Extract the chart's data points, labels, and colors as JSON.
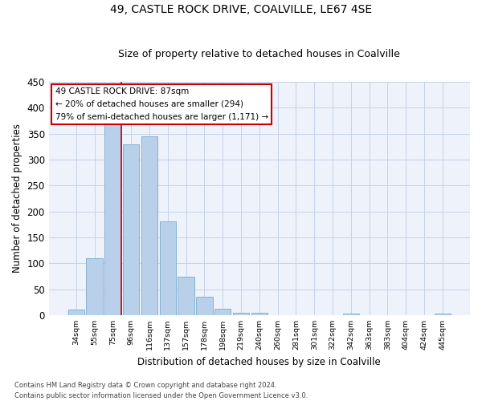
{
  "title": "49, CASTLE ROCK DRIVE, COALVILLE, LE67 4SE",
  "subtitle": "Size of property relative to detached houses in Coalville",
  "xlabel": "Distribution of detached houses by size in Coalville",
  "ylabel": "Number of detached properties",
  "bar_labels": [
    "34sqm",
    "55sqm",
    "75sqm",
    "96sqm",
    "116sqm",
    "137sqm",
    "157sqm",
    "178sqm",
    "198sqm",
    "219sqm",
    "240sqm",
    "260sqm",
    "281sqm",
    "301sqm",
    "322sqm",
    "342sqm",
    "363sqm",
    "383sqm",
    "404sqm",
    "424sqm",
    "445sqm"
  ],
  "bar_heights": [
    10,
    110,
    375,
    330,
    345,
    181,
    74,
    36,
    12,
    5,
    4,
    0,
    0,
    0,
    0,
    3,
    0,
    0,
    0,
    0,
    3
  ],
  "bar_color": "#b8d0ea",
  "bar_edge_color": "#7aaace",
  "vline_color": "#cc0000",
  "annotation_title": "49 CASTLE ROCK DRIVE: 87sqm",
  "annotation_line1": "← 20% of detached houses are smaller (294)",
  "annotation_line2": "79% of semi-detached houses are larger (1,171) →",
  "annotation_box_color": "#cc0000",
  "ylim": [
    0,
    450
  ],
  "yticks": [
    0,
    50,
    100,
    150,
    200,
    250,
    300,
    350,
    400,
    450
  ],
  "footer_line1": "Contains HM Land Registry data © Crown copyright and database right 2024.",
  "footer_line2": "Contains public sector information licensed under the Open Government Licence v3.0.",
  "bg_color": "#edf2fb",
  "grid_color": "#c5d3e8"
}
